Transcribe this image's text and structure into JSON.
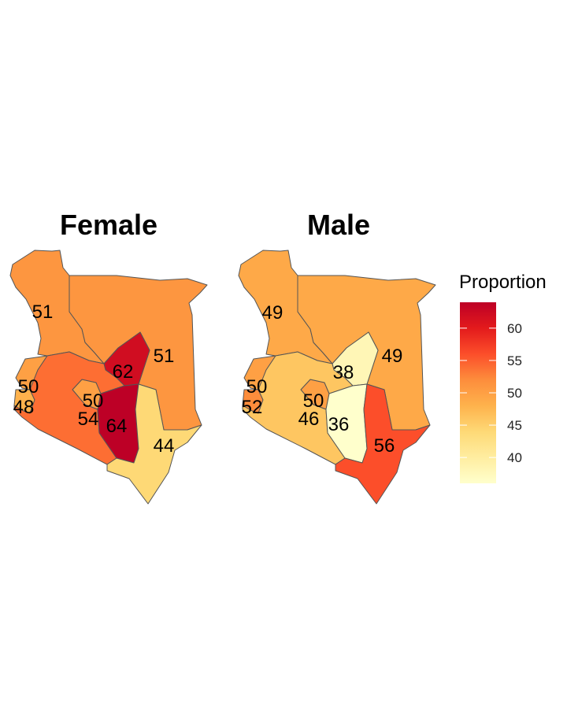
{
  "scale": {
    "title": "Proportion",
    "min": 36,
    "max": 64,
    "ticks": [
      "40",
      "45",
      "50",
      "55",
      "60"
    ],
    "colors": [
      "#ffffcc",
      "#ffeda0",
      "#fed976",
      "#feb24c",
      "#fd8d3c",
      "#fc4e2a",
      "#e31a1c",
      "#bd0026"
    ]
  },
  "panels": [
    {
      "title": "Female",
      "regions": [
        {
          "name": "northwest",
          "value": 51,
          "label": "51"
        },
        {
          "name": "northeast",
          "value": 51,
          "label": "51"
        },
        {
          "name": "central-north",
          "value": 62,
          "label": "62"
        },
        {
          "name": "western",
          "value": 50,
          "label": "50"
        },
        {
          "name": "nyanza",
          "value": 48,
          "label": "48"
        },
        {
          "name": "rift-south",
          "value": 50,
          "label": "50"
        },
        {
          "name": "central",
          "value": 54,
          "label": "54"
        },
        {
          "name": "eastern",
          "value": 64,
          "label": "64"
        },
        {
          "name": "coast",
          "value": 44,
          "label": "44"
        }
      ]
    },
    {
      "title": "Male",
      "regions": [
        {
          "name": "northwest",
          "value": 49,
          "label": "49"
        },
        {
          "name": "northeast",
          "value": 49,
          "label": "49"
        },
        {
          "name": "central-north",
          "value": 38,
          "label": "38"
        },
        {
          "name": "western",
          "value": 50,
          "label": "50"
        },
        {
          "name": "nyanza",
          "value": 52,
          "label": "52"
        },
        {
          "name": "rift-south",
          "value": 50,
          "label": "50"
        },
        {
          "name": "central",
          "value": 46,
          "label": "46"
        },
        {
          "name": "eastern",
          "value": 36,
          "label": "36"
        },
        {
          "name": "coast",
          "value": 56,
          "label": "56"
        }
      ]
    }
  ]
}
